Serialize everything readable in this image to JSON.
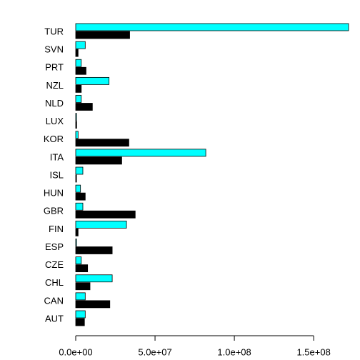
{
  "chart_data": {
    "type": "bar",
    "orientation": "horizontal",
    "title": "",
    "xlabel": "",
    "ylabel": "",
    "xlim": [
      0,
      172000000
    ],
    "grid": false,
    "legend": "none",
    "categories": [
      "AUT",
      "CAN",
      "CHL",
      "CZE",
      "ESP",
      "FIN",
      "GBR",
      "HUN",
      "ISL",
      "ITA",
      "KOR",
      "LUX",
      "NLD",
      "NZL",
      "PRT",
      "SVN",
      "TUR"
    ],
    "series": [
      {
        "name": "dark",
        "color": "#000000",
        "values": [
          5500000,
          21500000,
          9000000,
          7500000,
          23000000,
          1500000,
          37500000,
          6000000,
          500000,
          29000000,
          33500000,
          600000,
          10500000,
          3500000,
          6500000,
          1500000,
          34000000
        ]
      },
      {
        "name": "cyan",
        "color": "#00FFFF",
        "values": [
          6000000,
          6000000,
          23000000,
          3500000,
          500000,
          32000000,
          4500000,
          3000000,
          4500000,
          82000000,
          1500000,
          500000,
          3500000,
          21000000,
          3500000,
          6000000,
          172000000
        ]
      }
    ],
    "x_ticks": [
      {
        "value": 0,
        "label": "0.0e+00"
      },
      {
        "value": 50000000,
        "label": "5.0e+07"
      },
      {
        "value": 100000000,
        "label": "1.0e+08"
      },
      {
        "value": 150000000,
        "label": "1.5e+08"
      }
    ]
  }
}
